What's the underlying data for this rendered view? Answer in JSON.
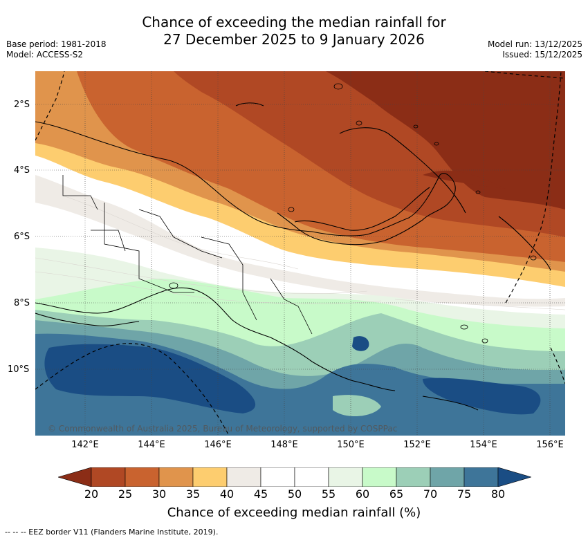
{
  "title": {
    "line1": "Chance of exceeding the median rainfall for",
    "line2": "27 December 2025 to 9 January 2026"
  },
  "meta": {
    "base_period": "Base period: 1981-2018",
    "model": "Model: ACCESS-S2",
    "model_run": "Model run: 13/12/2025",
    "issued": "Issued: 15/12/2025"
  },
  "map": {
    "region": "Papua New Guinea",
    "lat_labels": [
      "2°S",
      "4°S",
      "6°S",
      "8°S",
      "10°S"
    ],
    "lon_labels": [
      "142°E",
      "144°E",
      "146°E",
      "148°E",
      "150°E",
      "152°E",
      "154°E",
      "156°E"
    ],
    "copyright": "© Commonwealth of Australia 2025, Bureau of Meteorology, supported by COSPPac"
  },
  "legend": {
    "bins": [
      {
        "range": "<20",
        "color": "#8b2d16"
      },
      {
        "range": "20-25",
        "color": "#b04824"
      },
      {
        "range": "25-30",
        "color": "#c9632f"
      },
      {
        "range": "30-35",
        "color": "#e0944c"
      },
      {
        "range": "35-40",
        "color": "#fdcd6f"
      },
      {
        "range": "40-45",
        "color": "#efebe6"
      },
      {
        "range": "45-50",
        "color": "#ffffff"
      },
      {
        "range": "50-55",
        "color": "#ffffff"
      },
      {
        "range": "55-60",
        "color": "#e9f5e6"
      },
      {
        "range": "60-65",
        "color": "#c8fac9"
      },
      {
        "range": "65-70",
        "color": "#9ccfb7"
      },
      {
        "range": "70-75",
        "color": "#6fa5a8"
      },
      {
        "range": "75-80",
        "color": "#3e7599"
      },
      {
        "range": ">80",
        "color": "#1a4d84"
      }
    ],
    "ticks": [
      "20",
      "25",
      "30",
      "35",
      "40",
      "45",
      "50",
      "55",
      "60",
      "65",
      "70",
      "75",
      "80"
    ],
    "label": "Chance of exceeding median rainfall (%)"
  },
  "eez_note": "--  --  -- EEZ border V11 (Flanders Marine Institute, 2019)."
}
